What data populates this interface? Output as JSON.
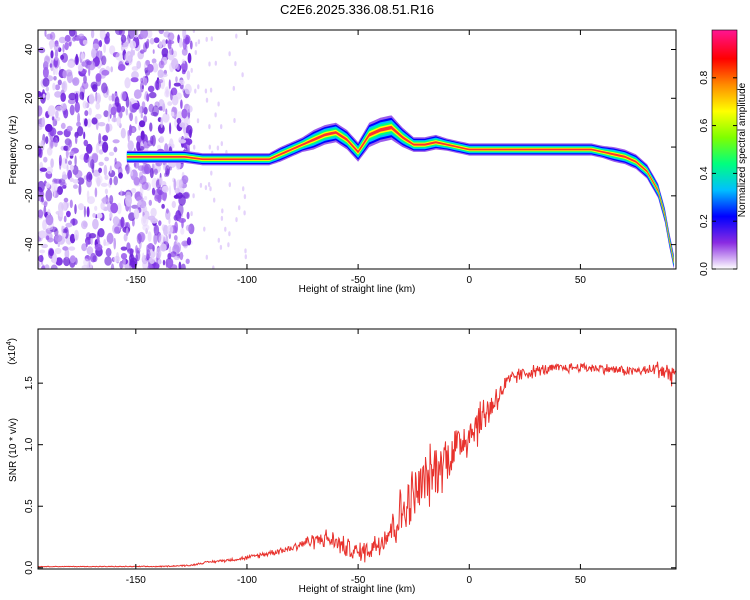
{
  "title": "C2E6.2025.336.08.51.R16",
  "chart_data": [
    {
      "type": "heatmap",
      "panel": "spectrogram",
      "xlabel": "Height of straight line (km)",
      "ylabel": "Frequency (Hz)",
      "xlim": [
        -194,
        93
      ],
      "ylim": [
        -50,
        48
      ],
      "xticks": [
        -150,
        -100,
        -50,
        0,
        50
      ],
      "xtick_labels": [
        "-150",
        "-100",
        "-50",
        "0",
        "50"
      ],
      "yticks": [
        -40,
        -20,
        0,
        20,
        40
      ],
      "ytick_labels": [
        "-40",
        "-20",
        "0",
        "20",
        "40"
      ],
      "noise_region_x": [
        -194,
        -125
      ],
      "ridge": {
        "x": [
          -154,
          -140,
          -128,
          -120,
          -110,
          -100,
          -90,
          -85,
          -80,
          -75,
          -70,
          -65,
          -60,
          -55,
          -50,
          -45,
          -40,
          -35,
          -30,
          -25,
          -20,
          -15,
          -10,
          -5,
          0,
          10,
          20,
          30,
          40,
          50,
          55,
          60,
          65,
          70,
          75,
          80,
          85,
          88,
          90,
          92
        ],
        "y": [
          -4,
          -4,
          -4,
          -5,
          -5,
          -5,
          -5,
          -3,
          -1,
          1,
          3,
          5,
          6,
          3,
          -2,
          5,
          7,
          8,
          4,
          1,
          1,
          2,
          1,
          0,
          -1,
          -1,
          -1,
          -1,
          -1,
          -1,
          -1,
          -2,
          -3,
          -4,
          -6,
          -10,
          -18,
          -28,
          -38,
          -47
        ],
        "width_hz": [
          2.5,
          2.5,
          2.5,
          2.5,
          2.5,
          2.5,
          2.5,
          3,
          3,
          3,
          4,
          4,
          4,
          4,
          4,
          5,
          5,
          5,
          4,
          3,
          3,
          3,
          2.5,
          2.5,
          2.5,
          2.5,
          2.5,
          2.5,
          2.5,
          2.5,
          2.5,
          2.5,
          3,
          3,
          3,
          3,
          3,
          3,
          3,
          3
        ]
      },
      "colorbar": {
        "label": "Normalized spectral amplitude",
        "range": [
          0,
          1
        ],
        "ticks": [
          0.0,
          0.2,
          0.4,
          0.6,
          0.8
        ],
        "tick_labels": [
          "0.0",
          "0.2",
          "0.4",
          "0.6",
          "0.8"
        ],
        "colors": [
          "#ffffff",
          "#8a2be2",
          "#0000ff",
          "#00bfff",
          "#00ff7f",
          "#7fff00",
          "#ffff00",
          "#ff8c00",
          "#ff0000",
          "#ff1493"
        ]
      }
    },
    {
      "type": "line",
      "panel": "snr",
      "xlabel": "Height of straight line (km)",
      "ylabel": "SNR (10 * v/v)",
      "scale_label": "(x10",
      "scale_exponent": "4",
      "xlim": [
        -194,
        93
      ],
      "ylim": [
        -0.01,
        1.94
      ],
      "xticks": [
        -150,
        -100,
        -50,
        0,
        50
      ],
      "xtick_labels": [
        "-150",
        "-100",
        "-50",
        "0",
        "50"
      ],
      "yticks": [
        0.0,
        0.5,
        1.0,
        1.5
      ],
      "ytick_labels": [
        "0.0",
        "0.5",
        "1.0",
        "1.5"
      ],
      "color": "#e8322d",
      "series": [
        {
          "name": "SNR",
          "x": [
            -194,
            -180,
            -160,
            -140,
            -125,
            -120,
            -110,
            -100,
            -90,
            -80,
            -75,
            -70,
            -65,
            -60,
            -55,
            -50,
            -45,
            -40,
            -35,
            -30,
            -25,
            -20,
            -15,
            -10,
            -5,
            0,
            5,
            10,
            15,
            20,
            25,
            30,
            40,
            50,
            60,
            70,
            80,
            85,
            90,
            93
          ],
          "y": [
            0.01,
            0.01,
            0.01,
            0.01,
            0.02,
            0.04,
            0.06,
            0.08,
            0.12,
            0.16,
            0.2,
            0.22,
            0.24,
            0.21,
            0.16,
            0.12,
            0.15,
            0.22,
            0.32,
            0.45,
            0.58,
            0.7,
            0.8,
            0.9,
            1.0,
            1.1,
            1.2,
            1.32,
            1.45,
            1.55,
            1.58,
            1.6,
            1.62,
            1.63,
            1.62,
            1.6,
            1.6,
            1.62,
            1.58,
            1.6
          ],
          "noise_amplitude": [
            0.003,
            0.003,
            0.004,
            0.005,
            0.008,
            0.01,
            0.015,
            0.02,
            0.03,
            0.04,
            0.06,
            0.08,
            0.09,
            0.1,
            0.1,
            0.1,
            0.12,
            0.15,
            0.22,
            0.28,
            0.3,
            0.3,
            0.28,
            0.28,
            0.25,
            0.25,
            0.22,
            0.18,
            0.12,
            0.08,
            0.07,
            0.06,
            0.05,
            0.05,
            0.05,
            0.05,
            0.05,
            0.1,
            0.12,
            0.12
          ]
        }
      ]
    }
  ]
}
